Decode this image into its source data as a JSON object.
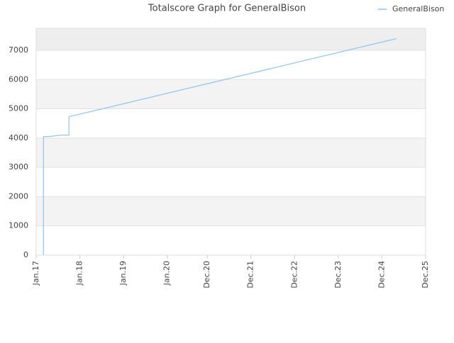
{
  "chart_data": {
    "type": "line",
    "title": "Totalscore Graph for GeneralBison",
    "x": [
      "2017-03",
      "2017-03",
      "2017-05",
      "2017-08",
      "2017-10",
      "2017-10",
      "2025-04"
    ],
    "series": [
      {
        "name": "GeneralBison",
        "color": "#8cc4f0",
        "values": [
          0,
          4050,
          4060,
          4100,
          4100,
          4730,
          7400
        ]
      }
    ],
    "xlim": [
      "2017-01",
      "2025-12"
    ],
    "xticks": [
      {
        "value": "2017-01",
        "label": "Jan.17"
      },
      {
        "value": "2018-01",
        "label": "Jan.18"
      },
      {
        "value": "2019-01",
        "label": "Jan.19"
      },
      {
        "value": "2020-01",
        "label": "Jan.20"
      },
      {
        "value": "2020-12",
        "label": "Dec.20"
      },
      {
        "value": "2021-12",
        "label": "Dec.21"
      },
      {
        "value": "2022-12",
        "label": "Dec.22"
      },
      {
        "value": "2023-12",
        "label": "Dec.23"
      },
      {
        "value": "2024-12",
        "label": "Dec.24"
      },
      {
        "value": "2025-12",
        "label": "Dec.25"
      }
    ],
    "ylim": [
      0,
      7750
    ],
    "yticks": [
      0,
      1000,
      2000,
      3000,
      4000,
      5000,
      6000,
      7000
    ],
    "grid": true,
    "legend": "top-right"
  }
}
